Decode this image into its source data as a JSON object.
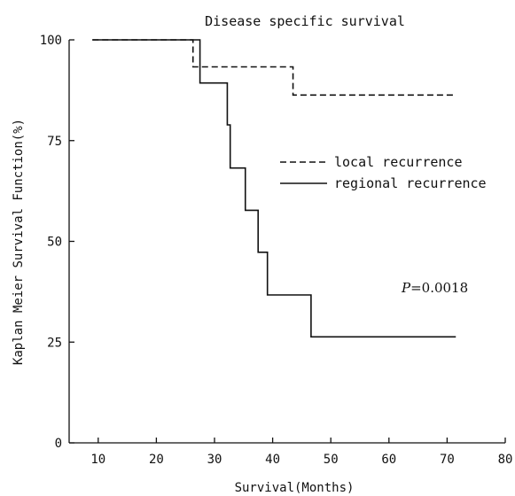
{
  "chart_data": {
    "type": "line",
    "title": "Disease specific survival",
    "xlabel": "Survival(Months)",
    "ylabel": "Kaplan Meier Survival Function(%)",
    "xlim": [
      5,
      80
    ],
    "ylim": [
      0,
      100
    ],
    "x_ticks": [
      10,
      20,
      30,
      40,
      50,
      60,
      70,
      80
    ],
    "y_ticks": [
      0,
      25,
      50,
      75,
      100
    ],
    "grid": false,
    "legend_position": "center-right",
    "series": [
      {
        "name": "local recurrence",
        "line_style": "dashed",
        "color": "#111111",
        "x": [
          9,
          26.3,
          26.3,
          43.5,
          43.5,
          71
        ],
        "y": [
          100,
          100,
          93.3,
          93.3,
          86.3,
          86.3
        ]
      },
      {
        "name": "regional recurrence",
        "line_style": "solid",
        "color": "#111111",
        "x": [
          9,
          27.5,
          27.5,
          32.2,
          32.2,
          32.7,
          32.7,
          35.3,
          35.3,
          37.5,
          37.5,
          39.1,
          39.1,
          46.6,
          46.6,
          71.5
        ],
        "y": [
          100,
          100,
          89.3,
          89.3,
          78.9,
          78.9,
          68.2,
          68.2,
          57.7,
          57.7,
          47.3,
          47.3,
          36.7,
          36.7,
          26.3,
          26.3
        ]
      }
    ],
    "annotations": [
      {
        "prefix": "P",
        "text": "=0.0018"
      }
    ]
  }
}
